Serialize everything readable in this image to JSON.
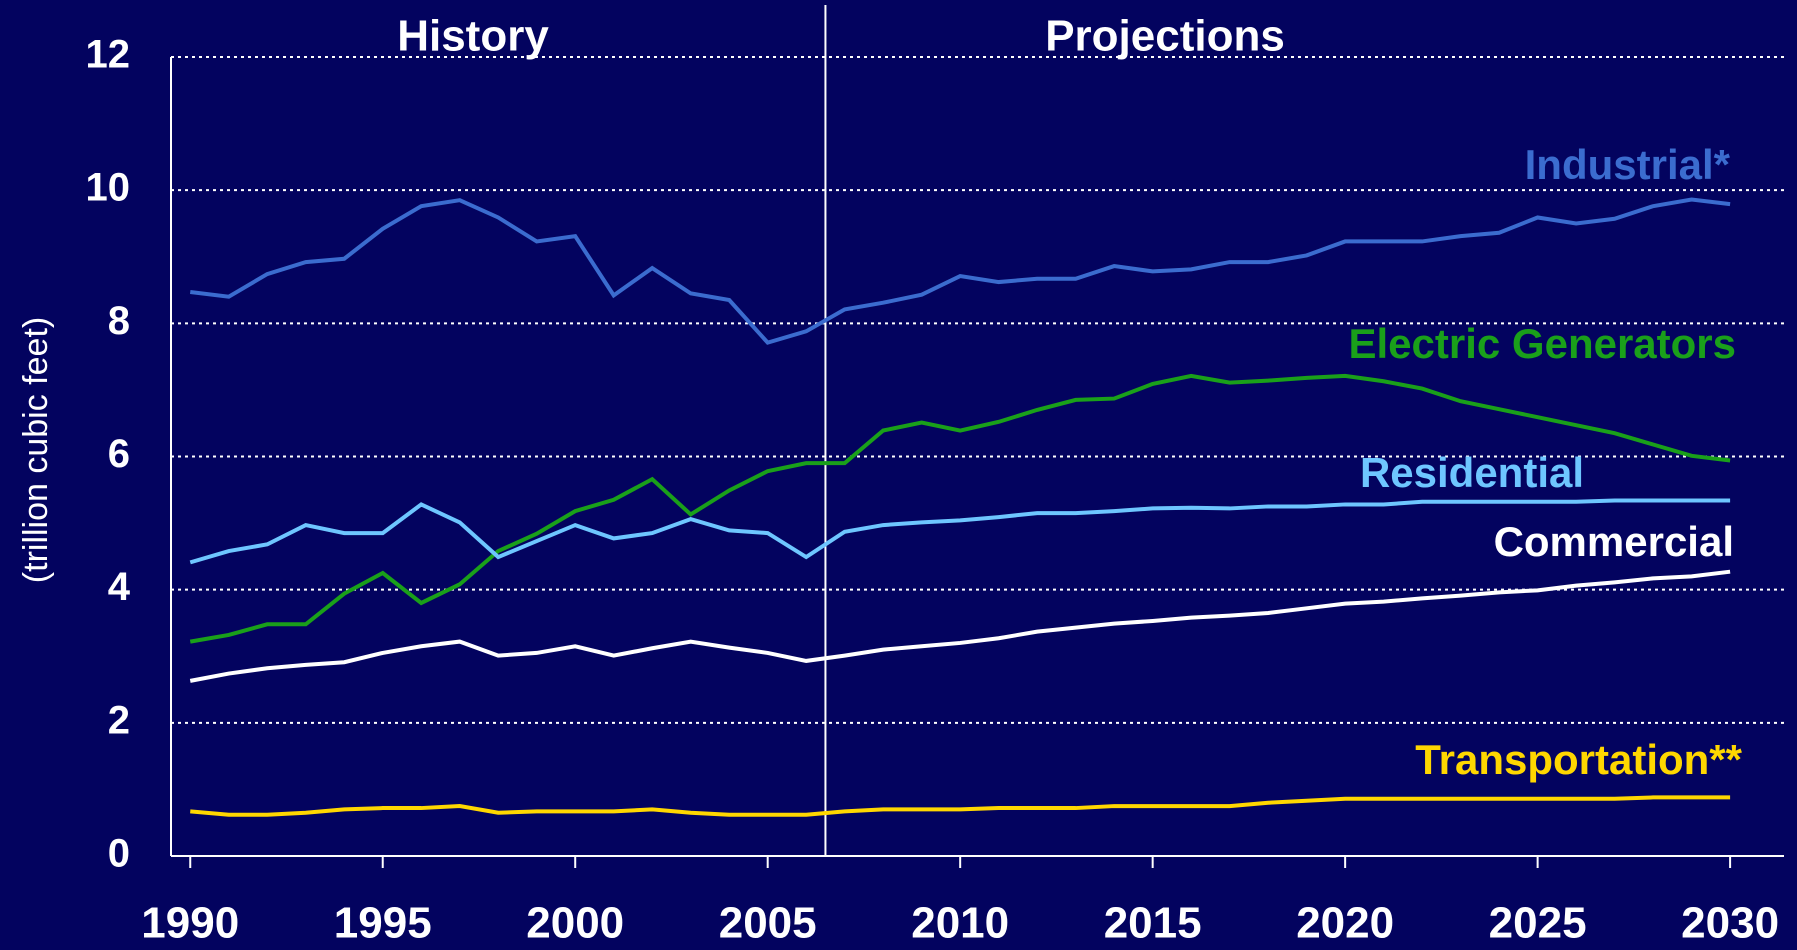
{
  "chart_data": {
    "type": "line",
    "y_label": "(trillion cubic feet)",
    "annotations": [
      "History",
      "Projections"
    ],
    "divider_x": 2006.5,
    "x": [
      1990,
      1991,
      1992,
      1993,
      1994,
      1995,
      1996,
      1997,
      1998,
      1999,
      2000,
      2001,
      2002,
      2003,
      2004,
      2005,
      2006,
      2007,
      2008,
      2009,
      2010,
      2011,
      2012,
      2013,
      2014,
      2015,
      2016,
      2017,
      2018,
      2019,
      2020,
      2021,
      2022,
      2023,
      2024,
      2025,
      2026,
      2027,
      2028,
      2029,
      2030
    ],
    "series": [
      {
        "name": "Industrial*",
        "color": "#3b6ccf",
        "values": [
          8.47,
          8.4,
          8.74,
          8.92,
          8.97,
          9.42,
          9.76,
          9.85,
          9.59,
          9.23,
          9.31,
          8.42,
          8.83,
          8.45,
          8.35,
          7.71,
          7.88,
          8.21,
          8.31,
          8.43,
          8.71,
          8.62,
          8.67,
          8.67,
          8.86,
          8.78,
          8.81,
          8.92,
          8.92,
          9.02,
          9.23,
          9.23,
          9.23,
          9.31,
          9.36,
          9.59,
          9.5,
          9.57,
          9.76,
          9.86,
          9.79
        ]
      },
      {
        "name": "Electric Generators",
        "color": "#1aa01a",
        "values": [
          3.22,
          3.32,
          3.48,
          3.48,
          3.94,
          4.25,
          3.8,
          4.08,
          4.58,
          4.84,
          5.18,
          5.35,
          5.66,
          5.13,
          5.49,
          5.78,
          5.9,
          5.9,
          6.39,
          6.51,
          6.39,
          6.52,
          6.7,
          6.85,
          6.87,
          7.09,
          7.21,
          7.11,
          7.14,
          7.18,
          7.21,
          7.13,
          7.02,
          6.83,
          6.71,
          6.59,
          6.47,
          6.35,
          6.18,
          6.01,
          5.94
        ]
      },
      {
        "name": "Residential",
        "color": "#6ec6ff",
        "values": [
          4.41,
          4.58,
          4.68,
          4.97,
          4.85,
          4.85,
          5.28,
          5.01,
          4.49,
          4.73,
          4.97,
          4.77,
          4.85,
          5.06,
          4.89,
          4.85,
          4.49,
          4.87,
          4.97,
          5.01,
          5.04,
          5.09,
          5.15,
          5.15,
          5.18,
          5.22,
          5.23,
          5.22,
          5.25,
          5.25,
          5.28,
          5.28,
          5.32,
          5.32,
          5.32,
          5.32,
          5.32,
          5.34,
          5.34,
          5.34,
          5.34
        ]
      },
      {
        "name": "Commercial",
        "color": "#ffffff",
        "values": [
          2.63,
          2.74,
          2.82,
          2.87,
          2.91,
          3.05,
          3.15,
          3.22,
          3.01,
          3.05,
          3.15,
          3.01,
          3.12,
          3.22,
          3.13,
          3.05,
          2.93,
          3.01,
          3.1,
          3.15,
          3.2,
          3.27,
          3.37,
          3.43,
          3.49,
          3.53,
          3.58,
          3.61,
          3.65,
          3.72,
          3.79,
          3.82,
          3.87,
          3.91,
          3.96,
          3.99,
          4.06,
          4.11,
          4.17,
          4.2,
          4.27
        ]
      },
      {
        "name": "Transportation**",
        "color": "#ffd700",
        "values": [
          0.67,
          0.62,
          0.62,
          0.65,
          0.7,
          0.72,
          0.72,
          0.75,
          0.65,
          0.67,
          0.67,
          0.67,
          0.7,
          0.65,
          0.62,
          0.62,
          0.62,
          0.67,
          0.7,
          0.7,
          0.7,
          0.72,
          0.72,
          0.72,
          0.75,
          0.75,
          0.75,
          0.75,
          0.8,
          0.83,
          0.86,
          0.86,
          0.86,
          0.86,
          0.86,
          0.86,
          0.86,
          0.86,
          0.88,
          0.88,
          0.88
        ]
      }
    ],
    "xlim": [
      1989.5,
      2031.4
    ],
    "xticks": [
      1990,
      1995,
      2000,
      2005,
      2010,
      2015,
      2020,
      2025,
      2030
    ],
    "ylim": [
      0,
      12
    ],
    "yticks": [
      0,
      2,
      4,
      6,
      8,
      10,
      12
    ],
    "grid": true
  }
}
